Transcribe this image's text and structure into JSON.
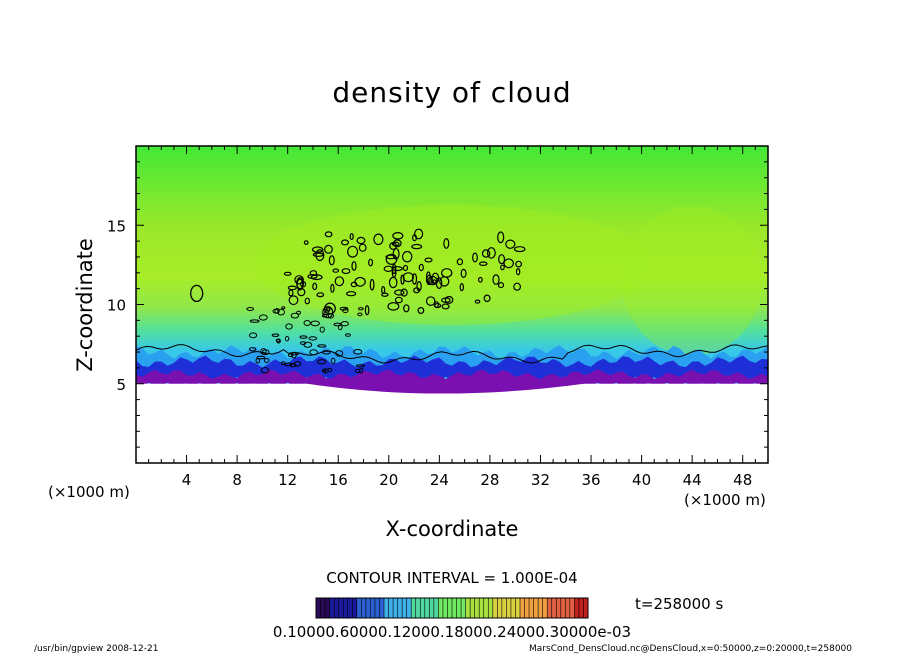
{
  "chart_data": {
    "type": "heatmap",
    "title": "density of cloud",
    "xlabel": "X-coordinate",
    "ylabel": "Z-coordinate",
    "x_unit": "(×1000 m)",
    "y_unit": "(×1000 m)",
    "xlim": [
      0,
      50
    ],
    "ylim": [
      0,
      20
    ],
    "x_ticks": [
      4,
      8,
      12,
      16,
      20,
      24,
      28,
      32,
      36,
      40,
      44,
      48
    ],
    "y_ticks": [
      5,
      10,
      15
    ],
    "contour_interval_text": "CONTOUR INTERVAL = 1.000E-04",
    "time_label": "t=258000 s",
    "colorbar_labels_text": "0.10000.60000.12000.18000.24000.30000e-03",
    "colorbar_colors": [
      "#2a0a55",
      "#1a1a9a",
      "#2a60d0",
      "#40b0e8",
      "#50d8a0",
      "#70e860",
      "#a8e040",
      "#d8d040",
      "#f0a040",
      "#e06040",
      "#c02020"
    ],
    "field": {
      "cloud_base_z": 5,
      "upper_region_color": "#5ee830",
      "mid_region_color": "#a0ee20",
      "blue_band_color": "#1e2fd8",
      "purple_band_color": "#7a10b0"
    },
    "grid": false,
    "legend": "bottom"
  },
  "footer": {
    "left": "/usr/bin/gpview   2008-12-21",
    "right": "MarsCond_DensCloud.nc@DensCloud,x=0:50000,z=0:20000,t=258000"
  }
}
